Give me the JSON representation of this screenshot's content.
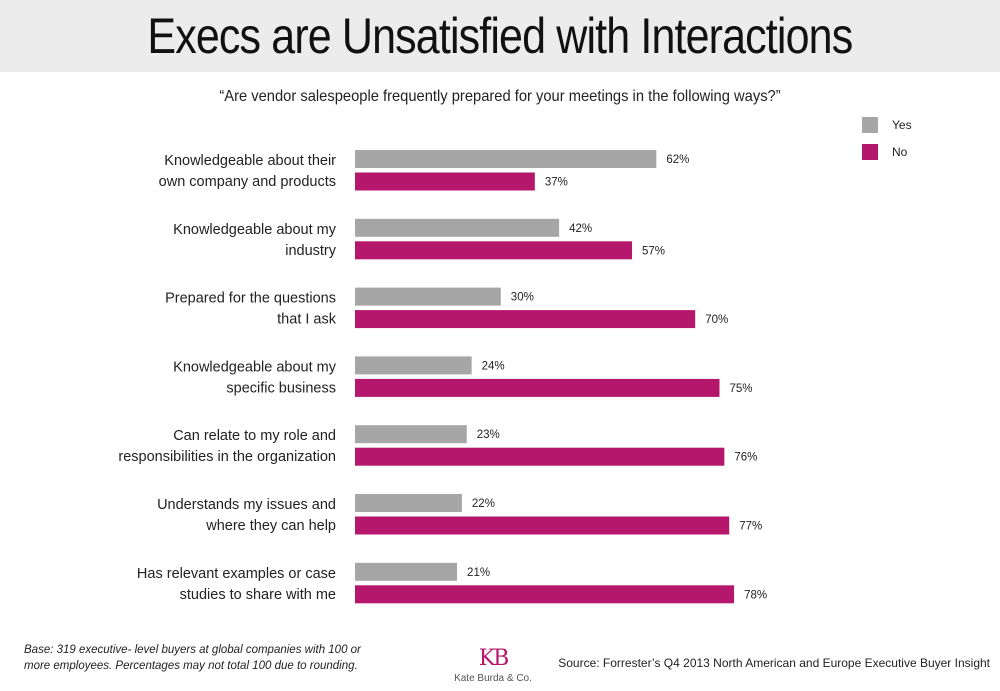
{
  "title": "Execs are Unsatisfied with Interactions",
  "chart_data": {
    "type": "bar",
    "orientation": "horizontal",
    "subtitle": "“Are vendor salespeople frequently prepared for your meetings in the following ways?”",
    "categories": [
      [
        "Knowledgeable about their",
        "own company and products"
      ],
      [
        "Knowledgeable about my",
        "industry"
      ],
      [
        "Prepared for the questions",
        "that I ask"
      ],
      [
        "Knowledgeable about my",
        "specific business"
      ],
      [
        "Can relate to my role and",
        "responsibilities in the organization"
      ],
      [
        "Understands my issues and",
        "where they can help"
      ],
      [
        "Has relevant examples or case",
        "studies to share with me"
      ]
    ],
    "series": [
      {
        "name": "Yes",
        "color": "#a6a6a6",
        "values": [
          62,
          42,
          30,
          24,
          23,
          22,
          21
        ],
        "labels": [
          "62%",
          "42%",
          "30%",
          "24%",
          "23%",
          "22%",
          "21%"
        ]
      },
      {
        "name": "No",
        "color": "#b5176c",
        "values": [
          37,
          57,
          70,
          75,
          76,
          77,
          78
        ],
        "labels": [
          "37%",
          "57%",
          "70%",
          "75%",
          "76%",
          "77%",
          "78%"
        ]
      }
    ],
    "xlim": [
      0,
      100
    ],
    "legend_position": "top-right",
    "grid": false
  },
  "footnote": "Base: 319 executive- level buyers at global companies with 100 or more employees. Percentages may not total 100 due to rounding.",
  "logo": {
    "mark": "KB",
    "name": "Kate Burda & Co."
  },
  "source": "Source: Forrester’s Q4 2013 North American and Europe Executive Buyer Insight"
}
